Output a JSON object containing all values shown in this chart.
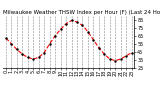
{
  "title": "Milwaukee Weather THSW Index per Hour (F) (Last 24 Hours)",
  "x_values": [
    0,
    1,
    2,
    3,
    4,
    5,
    6,
    7,
    8,
    9,
    10,
    11,
    12,
    13,
    14,
    15,
    16,
    17,
    18,
    19,
    20,
    21,
    22,
    23
  ],
  "y_values": [
    62,
    55,
    48,
    42,
    38,
    36,
    38,
    44,
    55,
    65,
    73,
    80,
    84,
    82,
    78,
    70,
    60,
    50,
    42,
    36,
    34,
    36,
    40,
    44
  ],
  "line_color": "#ff0000",
  "marker_color": "#000000",
  "bg_color": "#ffffff",
  "plot_bg_color": "#ffffff",
  "grid_color": "#888888",
  "ylim": [
    25,
    90
  ],
  "yticks": [
    25,
    35,
    45,
    55,
    65,
    75,
    85
  ],
  "title_fontsize": 4.0,
  "tick_fontsize": 3.5,
  "line_width": 0.8,
  "marker_size": 1.5
}
